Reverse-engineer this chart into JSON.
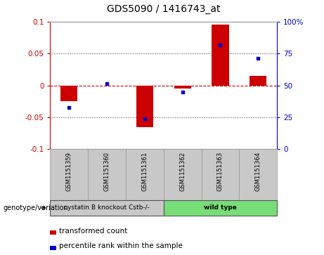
{
  "title": "GDS5090 / 1416743_at",
  "samples": [
    "GSM1151359",
    "GSM1151360",
    "GSM1151361",
    "GSM1151362",
    "GSM1151363",
    "GSM1151364"
  ],
  "red_bars": [
    -0.025,
    0.0,
    -0.065,
    -0.005,
    0.095,
    0.015
  ],
  "blue_dots_left": [
    -0.035,
    0.003,
    -0.052,
    -0.01,
    0.063,
    0.043
  ],
  "ylim_left": [
    -0.1,
    0.1
  ],
  "ylim_right": [
    0,
    100
  ],
  "yticks_left": [
    -0.1,
    -0.05,
    0,
    0.05,
    0.1
  ],
  "yticks_right": [
    0,
    25,
    50,
    75,
    100
  ],
  "ytick_labels_left": [
    "-0.1",
    "-0.05",
    "0",
    "0.05",
    "0.1"
  ],
  "ytick_labels_right": [
    "0",
    "25",
    "50",
    "75",
    "100%"
  ],
  "group1_label": "cystatin B knockout Cstb-/-",
  "group2_label": "wild type",
  "group_row_label": "genotype/variation",
  "legend_red": "transformed count",
  "legend_blue": "percentile rank within the sample",
  "bar_color": "#cc0000",
  "dot_color": "#0000cc",
  "zero_line_color": "#cc0000",
  "bg_color": "#ffffff",
  "genotype_bg_gray": "#c8c8c8",
  "genotype_bg_green": "#77dd77",
  "plot_bg": "#ffffff",
  "spine_color": "#999999",
  "dotline_color": "#444444"
}
